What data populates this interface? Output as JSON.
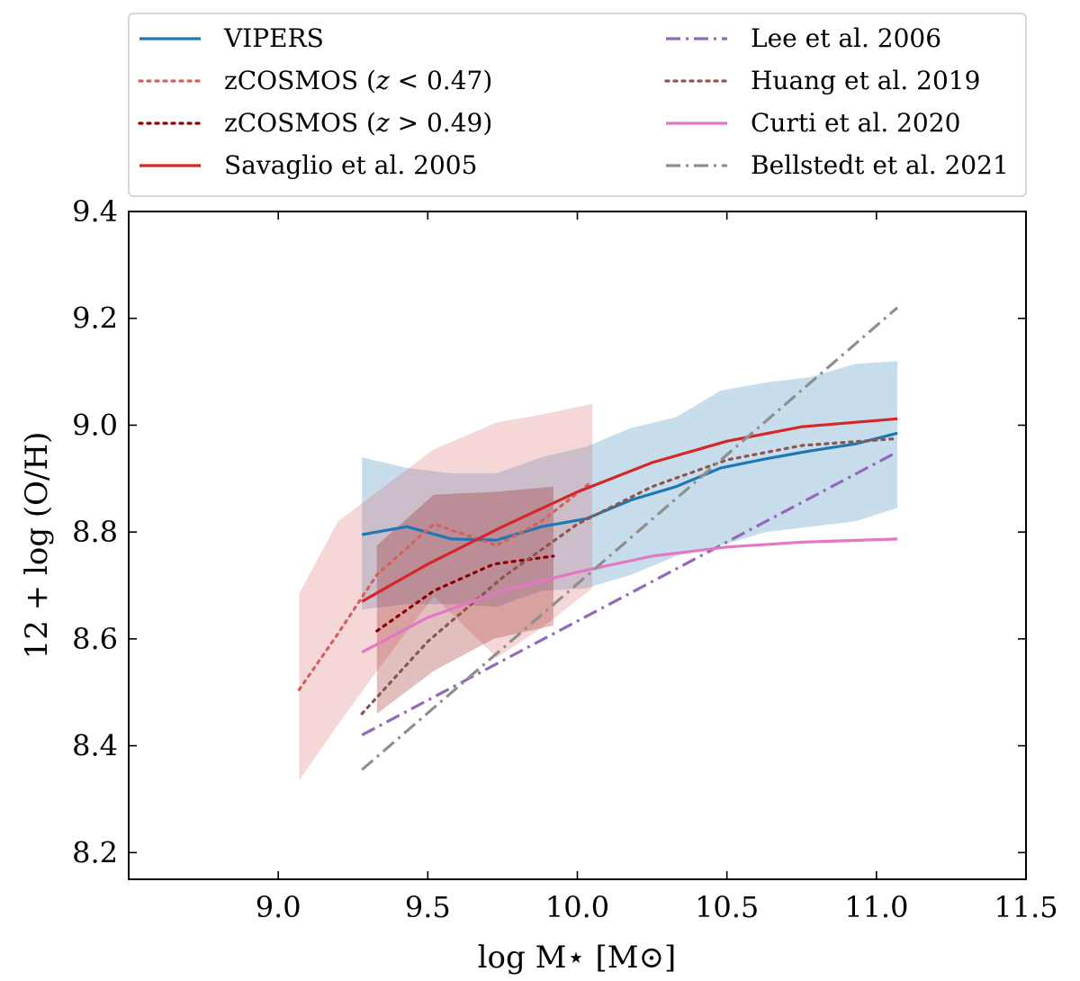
{
  "chart_data": {
    "type": "line",
    "title": "",
    "xlabel": "log M⋆ [M⊙]",
    "ylabel": "12 + log (O/H)",
    "xlim": [
      8.5,
      11.5
    ],
    "ylim": [
      8.15,
      9.4
    ],
    "xticks": [
      9.0,
      9.5,
      10.0,
      10.5,
      11.0,
      11.5
    ],
    "xtick_labels": [
      "9.0",
      "9.5",
      "10.0",
      "10.5",
      "11.0",
      "11.5"
    ],
    "yticks": [
      8.2,
      8.4,
      8.6,
      8.8,
      9.0,
      9.2,
      9.4
    ],
    "ytick_labels": [
      "8.2",
      "8.4",
      "8.6",
      "8.8",
      "9.0",
      "9.2",
      "9.4"
    ],
    "legend_position": "top (above axes), two columns",
    "series": [
      {
        "name": "VIPERS",
        "color": "#1f77b4",
        "style": "solid",
        "x": [
          9.28,
          9.43,
          9.58,
          9.73,
          9.88,
          10.03,
          10.18,
          10.33,
          10.48,
          10.63,
          10.78,
          10.93,
          11.07
        ],
        "y": [
          8.795,
          8.81,
          8.787,
          8.785,
          8.81,
          8.825,
          8.86,
          8.885,
          8.92,
          8.937,
          8.952,
          8.965,
          8.985
        ],
        "band_upper": [
          8.94,
          8.92,
          8.91,
          8.91,
          8.94,
          8.96,
          8.995,
          9.015,
          9.065,
          9.08,
          9.09,
          9.115,
          9.12
        ],
        "band_lower": [
          8.655,
          8.665,
          8.665,
          8.66,
          8.69,
          8.695,
          8.72,
          8.755,
          8.775,
          8.8,
          8.81,
          8.82,
          8.845
        ]
      },
      {
        "name": "zCOSMOS (z < 0.47)",
        "label_prefix": "zCOSMOS (",
        "label_var": "z",
        "label_suffix": " < 0.47)",
        "color": "#d65f5f",
        "style": "dotted",
        "x": [
          9.07,
          9.2,
          9.33,
          9.52,
          9.73,
          9.88,
          10.05
        ],
        "y": [
          8.505,
          8.61,
          8.72,
          8.815,
          8.775,
          8.82,
          8.895
        ],
        "band_upper": [
          8.685,
          8.82,
          8.875,
          8.955,
          9.005,
          9.02,
          9.04
        ],
        "band_lower": [
          8.335,
          8.44,
          8.54,
          8.68,
          8.565,
          8.62,
          8.695
        ]
      },
      {
        "name": "zCOSMOS (z > 0.49)",
        "label_prefix": "zCOSMOS (",
        "label_var": "z",
        "label_suffix": " > 0.49)",
        "color": "#8b0000",
        "style": "dotted",
        "x": [
          9.33,
          9.52,
          9.72,
          9.92
        ],
        "y": [
          8.615,
          8.69,
          8.74,
          8.755
        ],
        "band_upper": [
          8.775,
          8.87,
          8.875,
          8.885
        ],
        "band_lower": [
          8.46,
          8.54,
          8.6,
          8.625
        ]
      },
      {
        "name": "Savaglio et al. 2005",
        "color": "#d62728",
        "style": "solid",
        "x": [
          9.28,
          9.5,
          9.75,
          10.0,
          10.25,
          10.5,
          10.75,
          11.07
        ],
        "y": [
          8.67,
          8.74,
          8.81,
          8.875,
          8.93,
          8.97,
          8.997,
          9.012
        ]
      },
      {
        "name": "Lee et al. 2006",
        "color": "#9467bd",
        "style": "dashdot",
        "x": [
          9.28,
          11.07
        ],
        "y": [
          8.42,
          8.95
        ]
      },
      {
        "name": "Huang et al. 2019",
        "color": "#8c564b",
        "style": "dotted",
        "x": [
          9.28,
          9.5,
          9.75,
          10.0,
          10.25,
          10.5,
          10.75,
          11.07
        ],
        "y": [
          8.46,
          8.595,
          8.715,
          8.815,
          8.885,
          8.935,
          8.962,
          8.975
        ]
      },
      {
        "name": "Curti et al. 2020",
        "color": "#e377c2",
        "style": "solid",
        "x": [
          9.28,
          9.5,
          9.75,
          10.0,
          10.25,
          10.5,
          10.75,
          11.07
        ],
        "y": [
          8.575,
          8.64,
          8.69,
          8.725,
          8.755,
          8.772,
          8.781,
          8.787
        ]
      },
      {
        "name": "Bellstedt et al. 2021",
        "color": "#8f8f8f",
        "style": "dashdot",
        "x": [
          9.28,
          11.07
        ],
        "y": [
          8.355,
          9.22
        ]
      }
    ]
  }
}
